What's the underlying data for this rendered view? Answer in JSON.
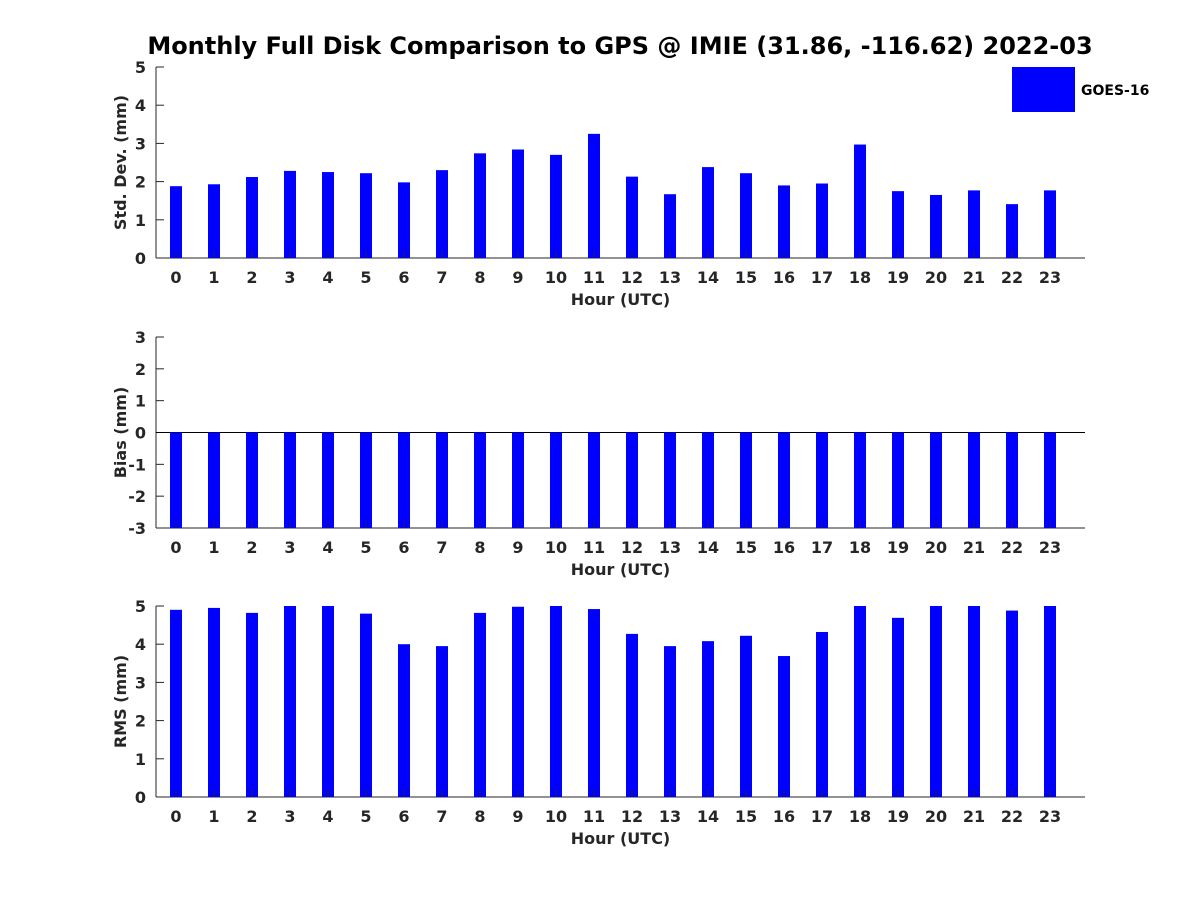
{
  "title": "Monthly Full Disk Comparison to GPS @ IMIE (31.86, -116.62) 2022-03",
  "colors": {
    "bar": "#0000ff",
    "axis": "#262626"
  },
  "legend": {
    "placement": "top-right",
    "entries": [
      {
        "label": "GOES-16",
        "color": "#0000ff"
      }
    ]
  },
  "chart_data": [
    {
      "type": "bar",
      "xlabel": "Hour (UTC)",
      "ylabel": "Std. Dev. (mm)",
      "ylim": [
        0,
        5
      ],
      "yticks": [
        0,
        1,
        2,
        3,
        4,
        5
      ],
      "grid": false,
      "categories": [
        "0",
        "1",
        "2",
        "3",
        "4",
        "5",
        "6",
        "7",
        "8",
        "9",
        "10",
        "11",
        "12",
        "13",
        "14",
        "15",
        "16",
        "17",
        "18",
        "19",
        "20",
        "21",
        "22",
        "23"
      ],
      "series": [
        {
          "name": "GOES-16",
          "values": [
            1.88,
            1.93,
            2.12,
            2.28,
            2.25,
            2.22,
            1.98,
            2.3,
            2.74,
            2.84,
            2.7,
            3.25,
            2.13,
            1.67,
            2.38,
            2.22,
            1.9,
            1.95,
            2.97,
            1.75,
            1.65,
            1.77,
            1.41,
            1.77
          ]
        }
      ]
    },
    {
      "type": "bar",
      "xlabel": "Hour (UTC)",
      "ylabel": "Bias (mm)",
      "ylim": [
        -3,
        3
      ],
      "yticks": [
        -3,
        -2,
        -1,
        0,
        1,
        2,
        3
      ],
      "grid": false,
      "categories": [
        "0",
        "1",
        "2",
        "3",
        "4",
        "5",
        "6",
        "7",
        "8",
        "9",
        "10",
        "11",
        "12",
        "13",
        "14",
        "15",
        "16",
        "17",
        "18",
        "19",
        "20",
        "21",
        "22",
        "23"
      ],
      "series": [
        {
          "name": "GOES-16",
          "values": [
            -3,
            -3,
            -3,
            -3,
            -3,
            -3,
            -3,
            -3,
            -3,
            -3,
            -3,
            -3,
            -3,
            -3,
            -3,
            -3,
            -3,
            -3,
            -3,
            -3,
            -3,
            -3,
            -3,
            -3
          ]
        }
      ]
    },
    {
      "type": "bar",
      "xlabel": "Hour (UTC)",
      "ylabel": "RMS (mm)",
      "ylim": [
        0,
        5
      ],
      "yticks": [
        0,
        1,
        2,
        3,
        4,
        5
      ],
      "grid": false,
      "categories": [
        "0",
        "1",
        "2",
        "3",
        "4",
        "5",
        "6",
        "7",
        "8",
        "9",
        "10",
        "11",
        "12",
        "13",
        "14",
        "15",
        "16",
        "17",
        "18",
        "19",
        "20",
        "21",
        "22",
        "23"
      ],
      "series": [
        {
          "name": "GOES-16",
          "values": [
            4.9,
            4.95,
            4.82,
            5.0,
            5.0,
            4.8,
            4.0,
            3.95,
            4.82,
            4.98,
            5.0,
            4.92,
            4.27,
            3.95,
            4.08,
            4.22,
            3.69,
            4.32,
            5.0,
            4.69,
            5.0,
            5.0,
            4.88,
            5.0
          ]
        }
      ]
    }
  ]
}
